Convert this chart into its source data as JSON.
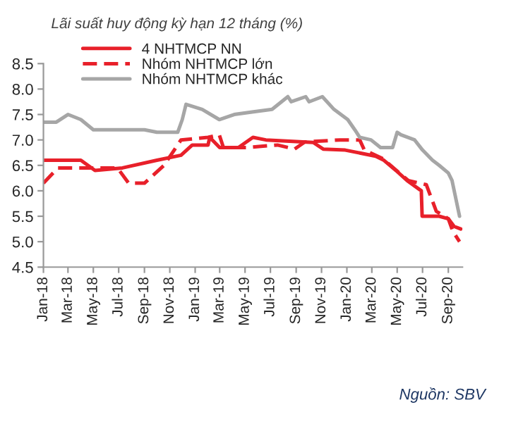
{
  "chart_data": {
    "type": "line",
    "title": "Lãi suất huy động kỳ hạn 12 tháng (%)",
    "annotations": [
      "Nguồn: SBV"
    ],
    "xlim": [
      "2018-01-01",
      "2020-10-05"
    ],
    "xticks": [
      {
        "value": "2018-01-01",
        "label": "Jan-18"
      },
      {
        "value": "2018-03-01",
        "label": "Mar-18"
      },
      {
        "value": "2018-05-01",
        "label": "May-18"
      },
      {
        "value": "2018-07-01",
        "label": "Jul-18"
      },
      {
        "value": "2018-09-01",
        "label": "Sep-18"
      },
      {
        "value": "2018-11-01",
        "label": "Nov-18"
      },
      {
        "value": "2019-01-01",
        "label": "Jan-19"
      },
      {
        "value": "2019-03-01",
        "label": "Mar-19"
      },
      {
        "value": "2019-05-01",
        "label": "May-19"
      },
      {
        "value": "2019-07-01",
        "label": "Jul-19"
      },
      {
        "value": "2019-09-01",
        "label": "Sep-19"
      },
      {
        "value": "2019-11-01",
        "label": "Nov-19"
      },
      {
        "value": "2020-01-01",
        "label": "Jan-20"
      },
      {
        "value": "2020-03-01",
        "label": "Mar-20"
      },
      {
        "value": "2020-05-01",
        "label": "May-20"
      },
      {
        "value": "2020-07-01",
        "label": "Jul-20"
      },
      {
        "value": "2020-09-01",
        "label": "Sep-20"
      }
    ],
    "ylim": [
      4.5,
      8.5
    ],
    "yticks": [
      {
        "value": 4.5,
        "label": "4.5"
      },
      {
        "value": 5.0,
        "label": "5.0"
      },
      {
        "value": 5.5,
        "label": "5.5"
      },
      {
        "value": 6.0,
        "label": "6.0"
      },
      {
        "value": 6.5,
        "label": "6.5"
      },
      {
        "value": 7.0,
        "label": "7.0"
      },
      {
        "value": 7.5,
        "label": "7.5"
      },
      {
        "value": 8.0,
        "label": "8.0"
      },
      {
        "value": 8.5,
        "label": "8.5"
      }
    ],
    "grid": false,
    "legend": "top left",
    "marker": "none",
    "series": [
      {
        "name": "4 NHTMCP NN",
        "color": "#e8202a",
        "line_style": "solid",
        "x": [
          "2018-01-01",
          "2018-04-01",
          "2018-05-05",
          "2018-07-10",
          "2018-10-01",
          "2018-11-28",
          "2018-12-25",
          "2019-02-01",
          "2019-02-05",
          "2019-03-01",
          "2019-04-15",
          "2019-05-20",
          "2019-06-20",
          "2019-10-12",
          "2019-11-05",
          "2019-12-28",
          "2020-03-10",
          "2020-03-30",
          "2020-04-28",
          "2020-05-25",
          "2020-06-28",
          "2020-06-30",
          "2020-08-10",
          "2020-09-01",
          "2020-09-15",
          "2020-10-01"
        ],
        "values": [
          6.6,
          6.6,
          6.4,
          6.45,
          6.6,
          6.7,
          6.9,
          6.9,
          7.05,
          6.85,
          6.85,
          7.05,
          7.0,
          6.95,
          6.82,
          6.8,
          6.68,
          6.6,
          6.4,
          6.2,
          6.0,
          5.5,
          5.5,
          5.45,
          5.3,
          5.25
        ]
      },
      {
        "name": "Nhóm NHTMCP lớn",
        "color": "#e8202a",
        "line_style": "dashed",
        "x": [
          "2018-01-01",
          "2018-02-05",
          "2018-06-28",
          "2018-07-25",
          "2018-09-01",
          "2018-10-18",
          "2018-11-28",
          "2019-02-01",
          "2019-02-28",
          "2019-03-10",
          "2019-04-15",
          "2019-05-05",
          "2019-07-18",
          "2019-08-28",
          "2019-09-22",
          "2019-12-15",
          "2020-02-01",
          "2020-02-12",
          "2020-03-28",
          "2020-05-06",
          "2020-05-28",
          "2020-07-10",
          "2020-08-03",
          "2020-09-01",
          "2020-09-12",
          "2020-09-28"
        ],
        "values": [
          6.15,
          6.45,
          6.45,
          6.15,
          6.15,
          6.5,
          7.0,
          7.05,
          7.1,
          6.85,
          6.85,
          6.85,
          6.9,
          6.82,
          6.96,
          7.0,
          7.0,
          6.8,
          6.63,
          6.35,
          6.2,
          6.12,
          5.6,
          5.45,
          5.2,
          5.0
        ]
      },
      {
        "name": "Nhóm NHTMCP khác",
        "color": "#a6a6a6",
        "line_style": "solid",
        "x": [
          "2018-01-01",
          "2018-02-01",
          "2018-03-01",
          "2018-04-01",
          "2018-05-01",
          "2018-09-01",
          "2018-10-01",
          "2018-11-20",
          "2018-12-01",
          "2018-12-10",
          "2019-01-18",
          "2019-02-28",
          "2019-04-05",
          "2019-05-18",
          "2019-07-05",
          "2019-08-12",
          "2019-08-20",
          "2019-09-24",
          "2019-10-02",
          "2019-11-03",
          "2019-12-01",
          "2020-01-03",
          "2020-01-20",
          "2020-02-01",
          "2020-02-28",
          "2020-03-22",
          "2020-04-20",
          "2020-05-01",
          "2020-05-10",
          "2020-06-12",
          "2020-07-01",
          "2020-07-25",
          "2020-08-10",
          "2020-09-01",
          "2020-09-10",
          "2020-09-28"
        ],
        "values": [
          7.35,
          7.35,
          7.5,
          7.4,
          7.2,
          7.2,
          7.15,
          7.15,
          7.4,
          7.7,
          7.6,
          7.4,
          7.5,
          7.55,
          7.6,
          7.85,
          7.75,
          7.85,
          7.75,
          7.85,
          7.6,
          7.4,
          7.2,
          7.05,
          7.0,
          6.85,
          6.85,
          7.15,
          7.1,
          7.0,
          6.8,
          6.6,
          6.5,
          6.35,
          6.2,
          5.5
        ]
      }
    ]
  }
}
